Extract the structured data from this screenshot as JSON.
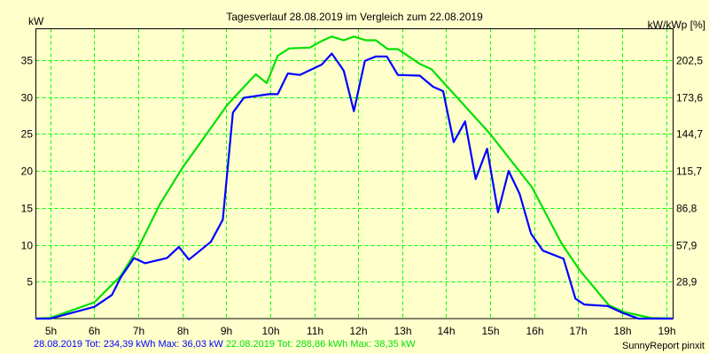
{
  "chart_data": {
    "type": "line",
    "title": "Tagesverlauf 28.08.2019 im Vergleich zum 22.08.2019",
    "ylabel": "kW",
    "ylabel_right": "kW/kWp [%]",
    "xlabel": "",
    "xlim": [
      4.67,
      19.16
    ],
    "ylim": [
      0,
      38.5
    ],
    "grid": true,
    "x_ticks": [
      5,
      6,
      7,
      8,
      9,
      10,
      11,
      12,
      13,
      14,
      15,
      16,
      17,
      18,
      19
    ],
    "x_tick_labels": [
      "5h",
      "6h",
      "7h",
      "8h",
      "9h",
      "10h",
      "11h",
      "12h",
      "13h",
      "14h",
      "15h",
      "16h",
      "17h",
      "18h",
      "19h"
    ],
    "y_ticks": [
      5,
      10,
      15,
      20,
      25,
      30,
      35
    ],
    "y_tick_labels": [
      "5",
      "10",
      "15",
      "20",
      "25",
      "30",
      "35"
    ],
    "y_right_tick_labels": [
      "28,9",
      "57,9",
      "86,8",
      "115,7",
      "144,7",
      "173,6",
      "202,5"
    ],
    "series": [
      {
        "name": "28.08.2019",
        "color": "#0000FF",
        "x": [
          4.67,
          5,
          6,
          6.4,
          6.6,
          6.9,
          7.15,
          7.65,
          7.92,
          8.15,
          8.65,
          8.92,
          9.15,
          9.4,
          9.97,
          10.17,
          10.4,
          10.67,
          11.17,
          11.4,
          11.67,
          11.9,
          12.15,
          12.4,
          12.65,
          12.9,
          13.4,
          13.7,
          13.93,
          14.17,
          14.43,
          14.67,
          14.93,
          15.18,
          15.42,
          15.67,
          15.93,
          16.2,
          16.67,
          16.94,
          17.14,
          17.67,
          18,
          18.37,
          19,
          19.16
        ],
        "y": [
          0,
          0,
          1.6,
          3.2,
          5.6,
          8.2,
          7.5,
          8.2,
          9.7,
          8.0,
          10.4,
          13.4,
          27.9,
          29.9,
          30.4,
          30.4,
          33.2,
          33.0,
          34.4,
          35.9,
          33.6,
          28.1,
          34.9,
          35.5,
          35.5,
          33.0,
          32.9,
          31.4,
          30.8,
          23.9,
          26.7,
          18.9,
          23.0,
          14.4,
          20.0,
          16.9,
          11.5,
          9.2,
          8.1,
          2.7,
          1.9,
          1.7,
          0.8,
          0,
          0,
          0
        ]
      },
      {
        "name": "22.08.2019",
        "color": "#00E000",
        "x": [
          4.67,
          5,
          6,
          6.6,
          7,
          7.5,
          8,
          8.67,
          9.03,
          9.67,
          9.92,
          10.17,
          10.43,
          10.9,
          11.17,
          11.4,
          11.67,
          11.9,
          12.17,
          12.4,
          12.67,
          12.9,
          13.4,
          13.66,
          14.27,
          15,
          15.95,
          16.62,
          17.03,
          17.7,
          18.04,
          18.65,
          19.16
        ],
        "y": [
          0,
          0.1,
          2.2,
          5.8,
          9.6,
          15.6,
          20.4,
          26,
          29,
          33.1,
          31.9,
          35.6,
          36.6,
          36.7,
          37.6,
          38.2,
          37.7,
          38.2,
          37.7,
          37.7,
          36.5,
          36.5,
          34.5,
          33.8,
          29.8,
          25,
          17.8,
          10.2,
          6.6,
          1.8,
          0.9,
          0.1,
          0
        ]
      }
    ],
    "legend": {
      "placement": "bottom-left",
      "series1_text": "28.08.2019 Tot: 234,39 kWh Max: 36,03 kW",
      "series2_text": "22.08.2019 Tot: 288,86 kWh Max: 38,35 kW"
    },
    "credit": "SunnyReport pinxit"
  },
  "colors": {
    "background": "#FFFFCC",
    "grid": "#00FF00",
    "series1": "#0000FF",
    "series2": "#00E000"
  }
}
